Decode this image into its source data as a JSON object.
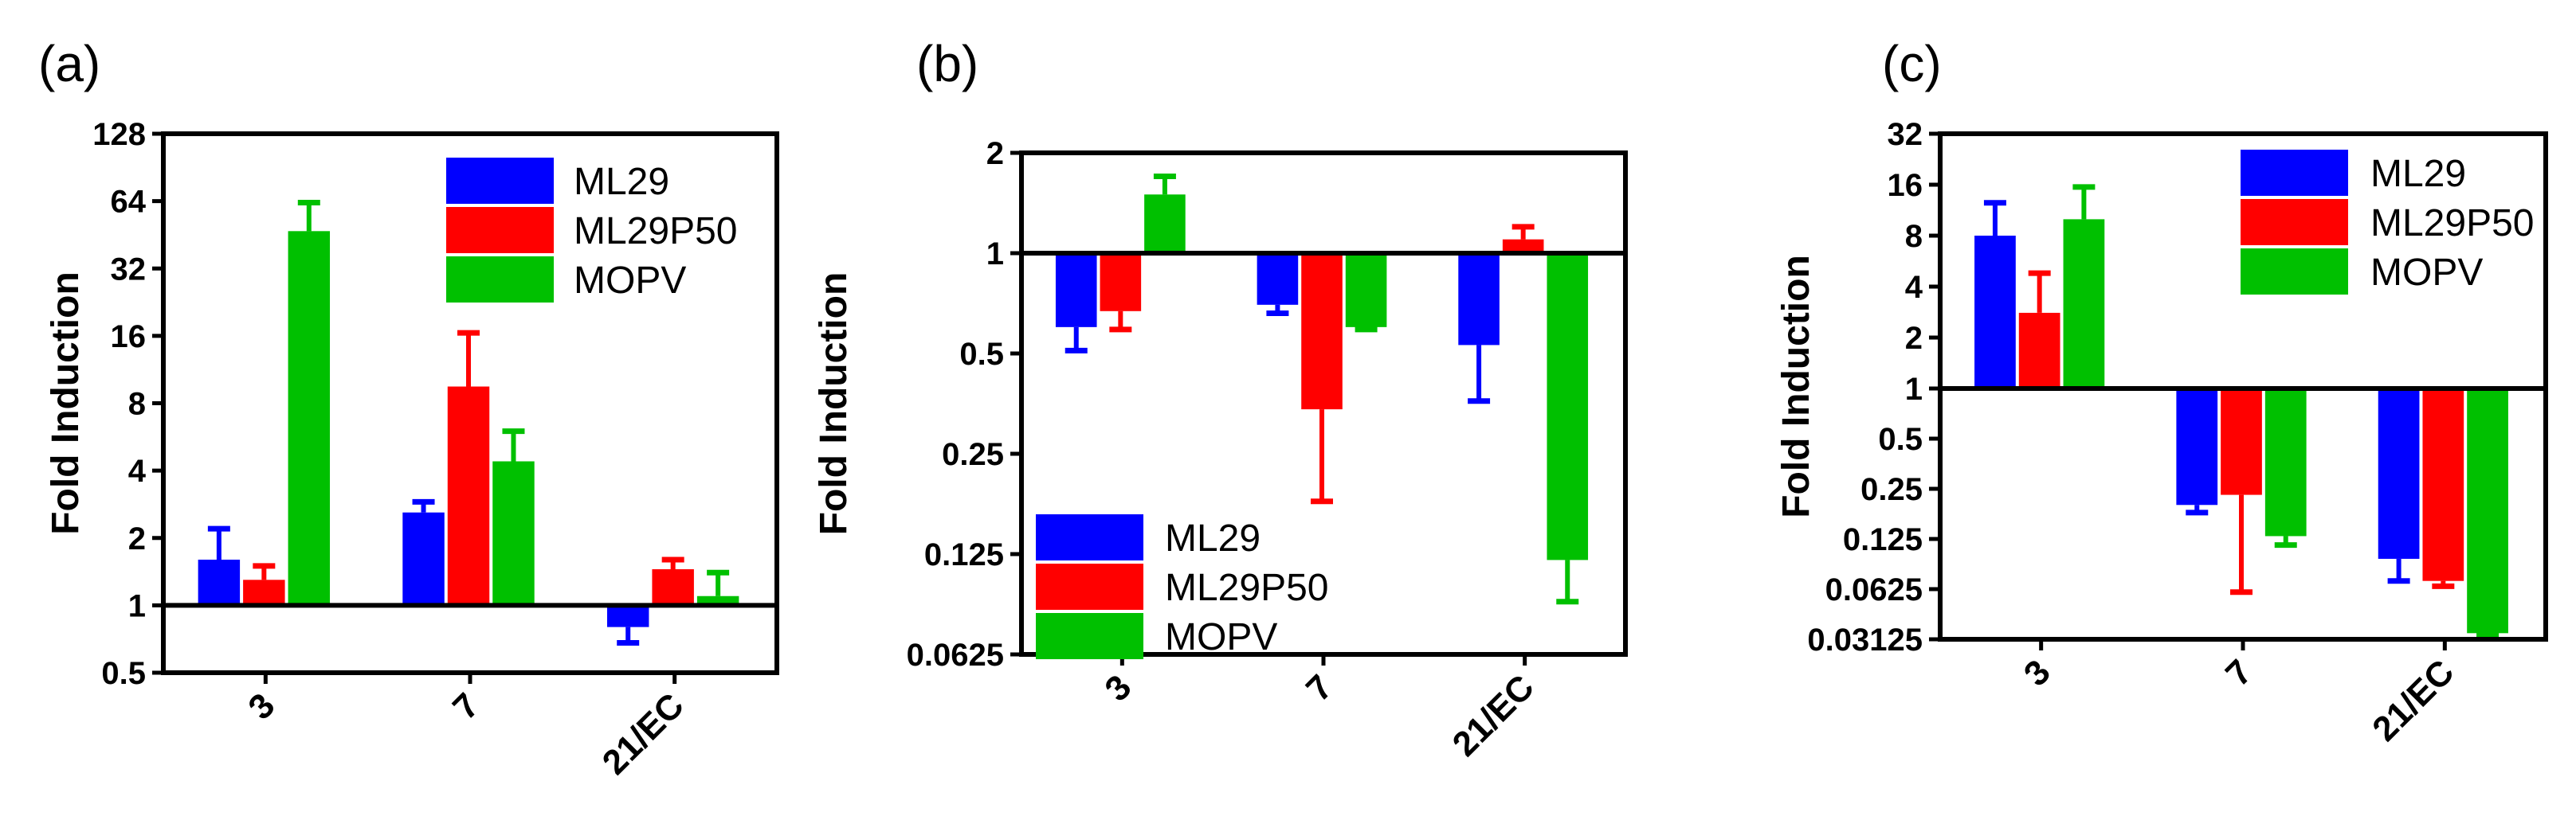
{
  "chart_data": [
    {
      "type": "bar",
      "panel_label": "(a)",
      "ylabel": "Fold Induction",
      "scale": "log2",
      "ylim": [
        0.5,
        128
      ],
      "yticks": [
        "0.5",
        "1",
        "2",
        "4",
        "8",
        "16",
        "32",
        "64",
        "128"
      ],
      "baseline": 1,
      "categories": [
        "3",
        "7",
        "21/EC"
      ],
      "legend_position": "top-right",
      "series": [
        {
          "name": "ML29",
          "color": "#0000ff",
          "values": [
            1.6,
            2.6,
            0.8
          ],
          "errors": [
            2.2,
            2.9,
            0.68
          ]
        },
        {
          "name": "ML29P50",
          "color": "#ff0000",
          "values": [
            1.3,
            9.5,
            1.45
          ],
          "errors": [
            1.5,
            16.5,
            1.6
          ]
        },
        {
          "name": "MOPV",
          "color": "#00c000",
          "values": [
            47,
            4.4,
            1.1
          ],
          "errors": [
            63,
            6.0,
            1.4
          ]
        }
      ]
    },
    {
      "type": "bar",
      "panel_label": "(b)",
      "ylabel": "Fold Induction",
      "scale": "log2",
      "ylim": [
        0.0625,
        2
      ],
      "yticks": [
        "0.0625",
        "0.125",
        "0.25",
        "0.5",
        "1",
        "2"
      ],
      "baseline": 1,
      "categories": [
        "3",
        "7",
        "21/EC"
      ],
      "legend_position": "bottom-left",
      "series": [
        {
          "name": "ML29",
          "color": "#0000ff",
          "values": [
            0.6,
            0.7,
            0.53
          ],
          "errors": [
            0.51,
            0.66,
            0.36
          ]
        },
        {
          "name": "ML29P50",
          "color": "#ff0000",
          "values": [
            0.67,
            0.34,
            1.1
          ],
          "errors": [
            0.59,
            0.18,
            1.2
          ]
        },
        {
          "name": "MOPV",
          "color": "#00c000",
          "values": [
            1.5,
            0.6,
            0.12
          ],
          "errors": [
            1.7,
            0.59,
            0.09
          ]
        }
      ]
    },
    {
      "type": "bar",
      "panel_label": "(c)",
      "ylabel": "Fold Induction",
      "scale": "log2-split",
      "ylim": [
        0.03125,
        32
      ],
      "yticks": [
        "0.03125",
        "0.0625",
        "0.125",
        "0.25",
        "0.5",
        "1",
        "2",
        "4",
        "8",
        "16",
        "32"
      ],
      "baseline": 1,
      "categories": [
        "3",
        "7",
        "21/EC"
      ],
      "legend_position": "top-right",
      "series": [
        {
          "name": "ML29",
          "color": "#0000ff",
          "values": [
            8,
            0.2,
            0.095
          ],
          "errors": [
            12.5,
            0.18,
            0.07
          ]
        },
        {
          "name": "ML29P50",
          "color": "#ff0000",
          "values": [
            2.8,
            0.23,
            0.07
          ],
          "errors": [
            4.8,
            0.06,
            0.065
          ]
        },
        {
          "name": "MOPV",
          "color": "#00c000",
          "values": [
            10,
            0.13,
            0.034
          ],
          "errors": [
            15.5,
            0.115,
            0.033
          ]
        }
      ]
    }
  ]
}
